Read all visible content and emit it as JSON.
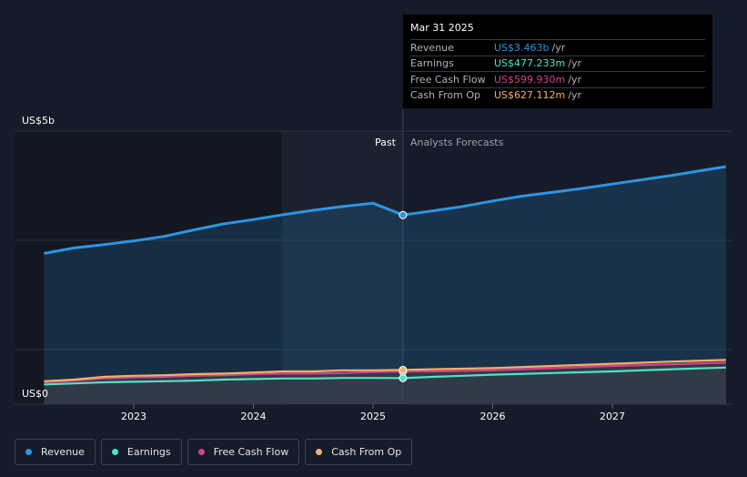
{
  "chart_data": {
    "type": "area",
    "y_unit_labels": {
      "top": "US$5b",
      "bottom": "US$0"
    },
    "ylim": [
      0,
      5
    ],
    "x_ticks": [
      "2023",
      "2024",
      "2025",
      "2026",
      "2027"
    ],
    "divider": {
      "past_label": "Past",
      "forecast_label": "Analysts Forecasts"
    },
    "series": [
      {
        "name": "Revenue",
        "color": "#2d95e2",
        "points": [
          [
            2022.25,
            2.76
          ],
          [
            2022.5,
            2.86
          ],
          [
            2022.75,
            2.92
          ],
          [
            2023.0,
            2.99
          ],
          [
            2023.25,
            3.07
          ],
          [
            2023.5,
            3.19
          ],
          [
            2023.75,
            3.3
          ],
          [
            2024.0,
            3.38
          ],
          [
            2024.25,
            3.47
          ],
          [
            2024.5,
            3.55
          ],
          [
            2024.75,
            3.62
          ],
          [
            2025.0,
            3.68
          ],
          [
            2025.25,
            3.463
          ],
          [
            2025.5,
            3.54
          ],
          [
            2025.75,
            3.62
          ],
          [
            2026.0,
            3.72
          ],
          [
            2026.25,
            3.81
          ],
          [
            2026.5,
            3.88
          ],
          [
            2026.75,
            3.95
          ],
          [
            2027.0,
            4.03
          ],
          [
            2027.5,
            4.19
          ],
          [
            2027.95,
            4.35
          ]
        ]
      },
      {
        "name": "Earnings",
        "color": "#4fe3c8",
        "points": [
          [
            2022.25,
            0.36
          ],
          [
            2022.5,
            0.38
          ],
          [
            2022.75,
            0.4
          ],
          [
            2023.0,
            0.41
          ],
          [
            2023.25,
            0.42
          ],
          [
            2023.5,
            0.43
          ],
          [
            2023.75,
            0.45
          ],
          [
            2024.0,
            0.46
          ],
          [
            2024.25,
            0.47
          ],
          [
            2024.5,
            0.47
          ],
          [
            2024.75,
            0.48
          ],
          [
            2025.0,
            0.48
          ],
          [
            2025.25,
            0.477
          ],
          [
            2025.5,
            0.5
          ],
          [
            2025.75,
            0.52
          ],
          [
            2026.0,
            0.54
          ],
          [
            2026.5,
            0.57
          ],
          [
            2027.0,
            0.6
          ],
          [
            2027.5,
            0.64
          ],
          [
            2027.95,
            0.67
          ]
        ]
      },
      {
        "name": "Free Cash Flow",
        "color": "#d3428c",
        "points": [
          [
            2022.25,
            0.4
          ],
          [
            2022.5,
            0.43
          ],
          [
            2022.75,
            0.47
          ],
          [
            2023.0,
            0.49
          ],
          [
            2023.25,
            0.5
          ],
          [
            2023.5,
            0.52
          ],
          [
            2023.75,
            0.53
          ],
          [
            2024.0,
            0.55
          ],
          [
            2024.25,
            0.56
          ],
          [
            2024.5,
            0.56
          ],
          [
            2024.75,
            0.57
          ],
          [
            2025.0,
            0.59
          ],
          [
            2025.25,
            0.5999
          ],
          [
            2025.5,
            0.6
          ],
          [
            2025.75,
            0.61
          ],
          [
            2026.0,
            0.62
          ],
          [
            2026.5,
            0.66
          ],
          [
            2027.0,
            0.7
          ],
          [
            2027.5,
            0.73
          ],
          [
            2027.95,
            0.76
          ]
        ]
      },
      {
        "name": "Cash From Op",
        "color": "#efb266",
        "points": [
          [
            2022.25,
            0.42
          ],
          [
            2022.5,
            0.45
          ],
          [
            2022.75,
            0.5
          ],
          [
            2023.0,
            0.52
          ],
          [
            2023.25,
            0.53
          ],
          [
            2023.5,
            0.55
          ],
          [
            2023.75,
            0.56
          ],
          [
            2024.0,
            0.58
          ],
          [
            2024.25,
            0.6
          ],
          [
            2024.5,
            0.6
          ],
          [
            2024.75,
            0.62
          ],
          [
            2025.0,
            0.62
          ],
          [
            2025.25,
            0.627
          ],
          [
            2025.5,
            0.64
          ],
          [
            2025.75,
            0.65
          ],
          [
            2026.0,
            0.66
          ],
          [
            2026.5,
            0.7
          ],
          [
            2027.0,
            0.74
          ],
          [
            2027.5,
            0.78
          ],
          [
            2027.95,
            0.81
          ]
        ]
      }
    ]
  },
  "tooltip": {
    "date": "Mar 31 2025",
    "rows": [
      {
        "label": "Revenue",
        "value": "US$3.463b",
        "unit": "/yr",
        "color": "#2d95e2"
      },
      {
        "label": "Earnings",
        "value": "US$477.233m",
        "unit": "/yr",
        "color": "#4fe3c8"
      },
      {
        "label": "Free Cash Flow",
        "value": "US$599.930m",
        "unit": "/yr",
        "color": "#d3428c"
      },
      {
        "label": "Cash From Op",
        "value": "US$627.112m",
        "unit": "/yr",
        "color": "#efb266"
      }
    ]
  },
  "legend": [
    {
      "label": "Revenue",
      "color": "#2d95e2"
    },
    {
      "label": "Earnings",
      "color": "#4fe3c8"
    },
    {
      "label": "Free Cash Flow",
      "color": "#d3428c"
    },
    {
      "label": "Cash From Op",
      "color": "#efb266"
    }
  ]
}
